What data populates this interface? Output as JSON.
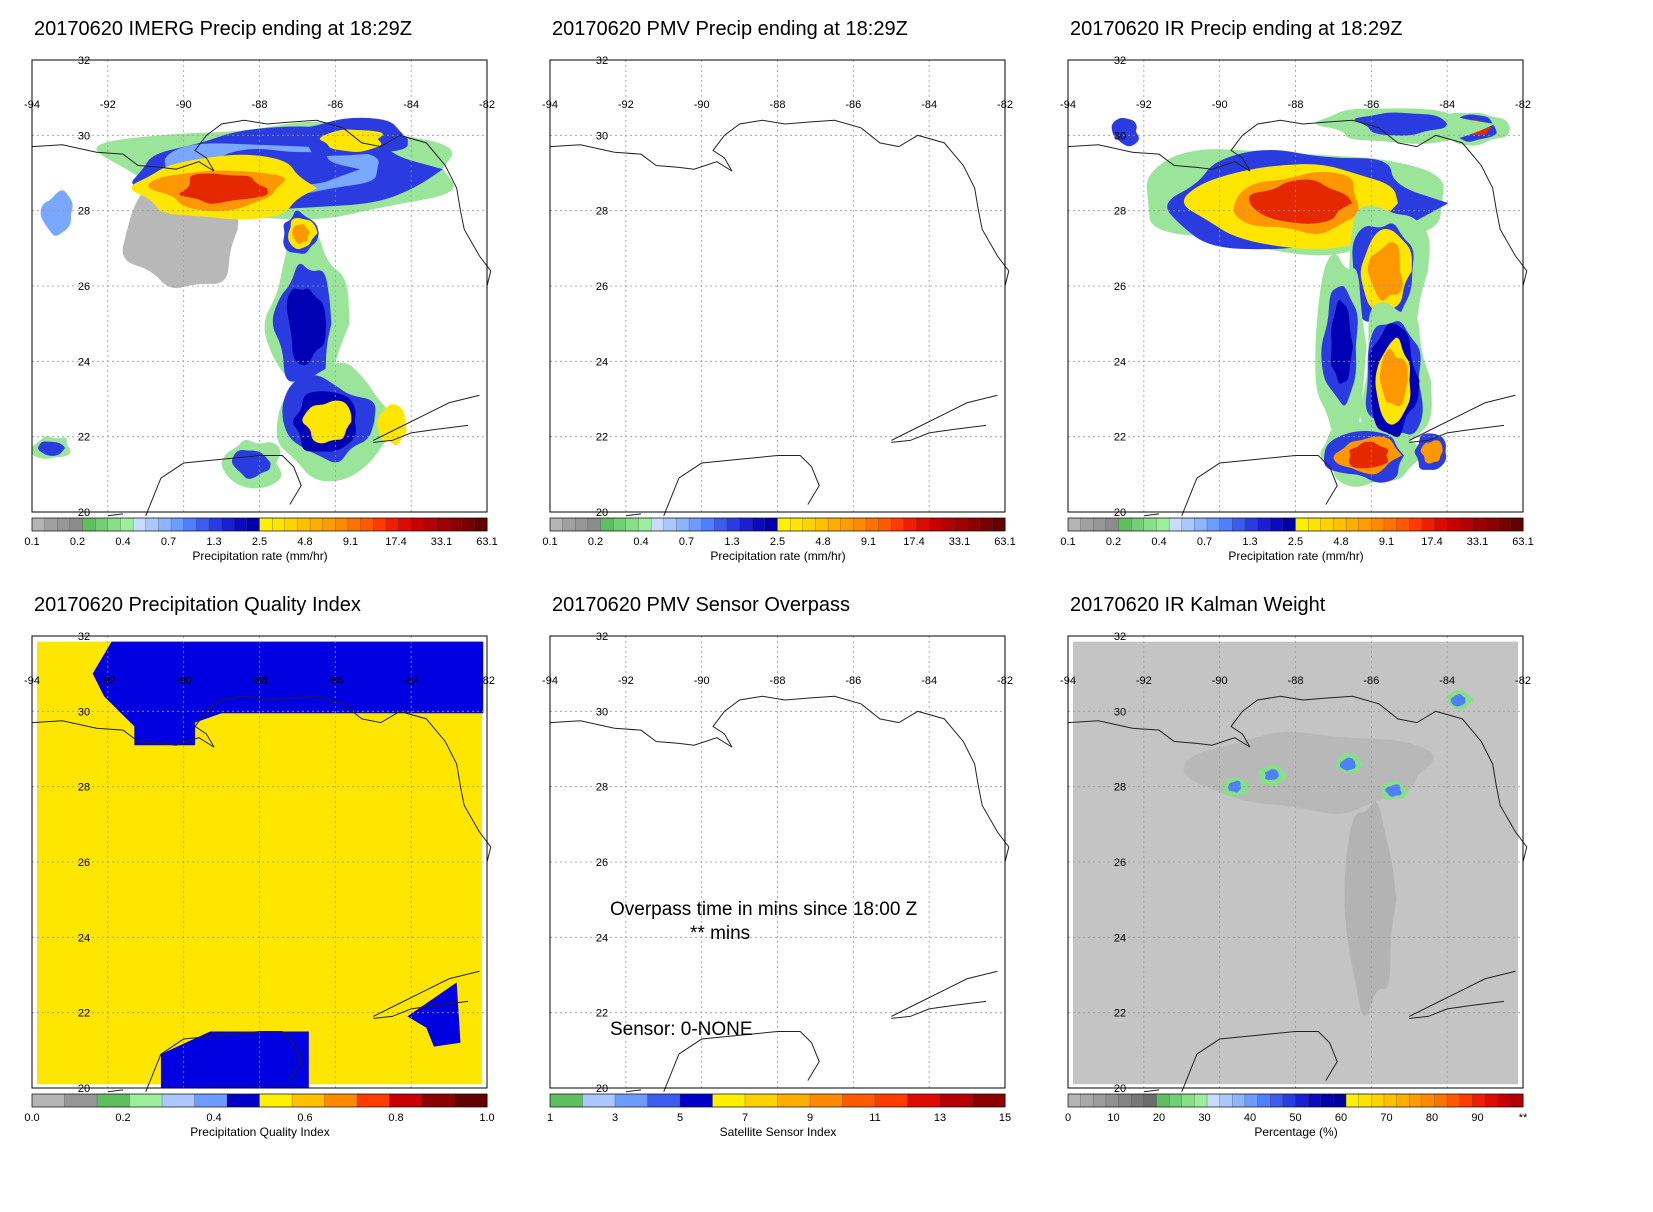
{
  "panels": [
    {
      "id": "imerg",
      "title": "20170620 IMERG Precip ending at 18:29Z",
      "field": "precip_imerg",
      "colorbar": {
        "colors": [
          "#b4b4b4",
          "#a0a0a0",
          "#969696",
          "#8c8c8c",
          "#5fbf5f",
          "#73cf73",
          "#87df87",
          "#9bef9b",
          "#c8dcff",
          "#aac8ff",
          "#8cb4ff",
          "#6e9bff",
          "#4f7fff",
          "#3a5cf0",
          "#2a3ce0",
          "#1a1fd0",
          "#0a0ac0",
          "#0000a8",
          "#fff000",
          "#ffe400",
          "#ffd200",
          "#ffc000",
          "#ffae00",
          "#ff9c00",
          "#ff8a00",
          "#ff7200",
          "#ff5a00",
          "#ff3c00",
          "#f01e00",
          "#dc0a00",
          "#c80000",
          "#b40000",
          "#a00000",
          "#8c0000",
          "#780000",
          "#640000"
        ],
        "ticks": [
          "0.1",
          "0.2",
          "0.4",
          "0.7",
          "1.3",
          "2.5",
          "4.8",
          "9.1",
          "17.4",
          "33.1",
          "63.1"
        ],
        "label": "Precipitation rate (mm/hr)"
      }
    },
    {
      "id": "pmv",
      "title": "20170620 PMV Precip ending at 18:29Z",
      "field": "none",
      "colorbar": {
        "colors": [
          "#b4b4b4",
          "#a0a0a0",
          "#969696",
          "#8c8c8c",
          "#5fbf5f",
          "#73cf73",
          "#87df87",
          "#9bef9b",
          "#c8dcff",
          "#aac8ff",
          "#8cb4ff",
          "#6e9bff",
          "#4f7fff",
          "#3a5cf0",
          "#2a3ce0",
          "#1a1fd0",
          "#0a0ac0",
          "#0000a8",
          "#fff000",
          "#ffe400",
          "#ffd200",
          "#ffc000",
          "#ffae00",
          "#ff9c00",
          "#ff8a00",
          "#ff7200",
          "#ff5a00",
          "#ff3c00",
          "#f01e00",
          "#dc0a00",
          "#c80000",
          "#b40000",
          "#a00000",
          "#8c0000",
          "#780000",
          "#640000"
        ],
        "ticks": [
          "0.1",
          "0.2",
          "0.4",
          "0.7",
          "1.3",
          "2.5",
          "4.8",
          "9.1",
          "17.4",
          "33.1",
          "63.1"
        ],
        "label": "Precipitation rate (mm/hr)"
      }
    },
    {
      "id": "ir",
      "title": "20170620 IR Precip ending at 18:29Z",
      "field": "precip_ir",
      "colorbar": {
        "colors": [
          "#b4b4b4",
          "#a0a0a0",
          "#969696",
          "#8c8c8c",
          "#5fbf5f",
          "#73cf73",
          "#87df87",
          "#9bef9b",
          "#c8dcff",
          "#aac8ff",
          "#8cb4ff",
          "#6e9bff",
          "#4f7fff",
          "#3a5cf0",
          "#2a3ce0",
          "#1a1fd0",
          "#0a0ac0",
          "#0000a8",
          "#fff000",
          "#ffe400",
          "#ffd200",
          "#ffc000",
          "#ffae00",
          "#ff9c00",
          "#ff8a00",
          "#ff7200",
          "#ff5a00",
          "#ff3c00",
          "#f01e00",
          "#dc0a00",
          "#c80000",
          "#b40000",
          "#a00000",
          "#8c0000",
          "#780000",
          "#640000"
        ],
        "ticks": [
          "0.1",
          "0.2",
          "0.4",
          "0.7",
          "1.3",
          "2.5",
          "4.8",
          "9.1",
          "17.4",
          "33.1",
          "63.1"
        ],
        "label": "Precipitation rate (mm/hr)"
      }
    },
    {
      "id": "pqi",
      "title": "20170620 Precipitation Quality Index",
      "field": "pqi",
      "colorbar": {
        "colors": [
          "#b4b4b4",
          "#969696",
          "#5fbf5f",
          "#9bef9b",
          "#aac8ff",
          "#6e9bff",
          "#0000c8",
          "#fff000",
          "#ffc000",
          "#ff8a00",
          "#ff3c00",
          "#c80000",
          "#8c0000",
          "#640000"
        ],
        "ticks": [
          "0.0",
          "0.2",
          "0.4",
          "0.6",
          "0.8",
          "1.0"
        ],
        "label": "Precipitation Quality Index"
      }
    },
    {
      "id": "sensor",
      "title": "20170620 PMV Sensor Overpass",
      "field": "none",
      "overlay": {
        "overpass_line1": "Overpass time in mins since 18:00 Z",
        "overpass_line2": "** mins",
        "sensor_line": "Sensor:   0-NONE"
      },
      "colorbar": {
        "colors": [
          "#5fbf5f",
          "#aac8ff",
          "#6e9bff",
          "#3a5cf0",
          "#0000c8",
          "#fff000",
          "#ffd200",
          "#ffae00",
          "#ff8a00",
          "#ff5a00",
          "#ff3c00",
          "#dc0a00",
          "#b40000",
          "#8c0000"
        ],
        "ticks": [
          "1",
          "3",
          "5",
          "7",
          "9",
          "11",
          "13",
          "15"
        ],
        "label": "Satellite Sensor Index"
      }
    },
    {
      "id": "kalman",
      "title": "20170620 IR Kalman Weight",
      "field": "kalman",
      "colorbar": {
        "colors": [
          "#b4b4b4",
          "#a8a8a8",
          "#9c9c9c",
          "#909090",
          "#848484",
          "#787878",
          "#6c6c6c",
          "#5fbf5f",
          "#73cf73",
          "#87df87",
          "#9bef9b",
          "#c8dcff",
          "#aac8ff",
          "#8cb4ff",
          "#6e9bff",
          "#4f7fff",
          "#3a5cf0",
          "#2a3ce0",
          "#1a1fd0",
          "#0a0ac0",
          "#0000a8",
          "#0000a0",
          "#fff000",
          "#ffe400",
          "#ffd200",
          "#ffc000",
          "#ffae00",
          "#ff9c00",
          "#ff8a00",
          "#ff7200",
          "#ff5a00",
          "#ff3c00",
          "#f01e00",
          "#dc0a00",
          "#c80000",
          "#b40000"
        ],
        "ticks": [
          "0",
          "10",
          "20",
          "30",
          "40",
          "50",
          "60",
          "70",
          "80",
          "90",
          "**"
        ],
        "label": "Percentage (%)"
      }
    }
  ],
  "map": {
    "lon_labels": [
      "-94",
      "-92",
      "-90",
      "-88",
      "-86",
      "-84",
      "-82"
    ],
    "lat_labels": [
      "32",
      "30",
      "28",
      "26",
      "24",
      "22",
      "20"
    ],
    "lon_range": [
      -94,
      -82
    ],
    "lat_range": [
      20,
      32
    ]
  }
}
